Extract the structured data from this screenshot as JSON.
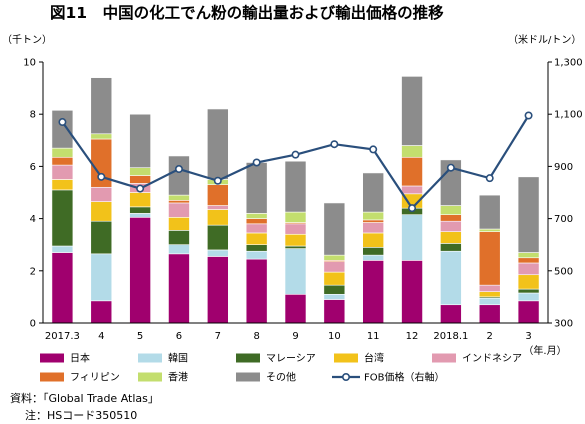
{
  "figure": {
    "title": "図11　中国の化工でん粉の輸出量および輸出価格の推移",
    "source": "資料：「Global Trade Atlas」",
    "note": "注：HSコード350510"
  },
  "chart_data": {
    "type": "bar",
    "stacked": true,
    "categories": [
      "2017.3",
      "4",
      "5",
      "6",
      "7",
      "8",
      "9",
      "10",
      "11",
      "12",
      "2018.1",
      "2",
      "3"
    ],
    "x_unit_label": "（年.月）",
    "y_left": {
      "unit_label": "（千トン）",
      "range": [
        0,
        10
      ],
      "ticks": [
        0,
        2,
        4,
        6,
        8,
        10
      ]
    },
    "y_right": {
      "unit_label": "（米ドル/トン）",
      "range": [
        300,
        1300
      ],
      "ticks": [
        "300",
        "500",
        "700",
        "900",
        "1,100",
        "1,300"
      ]
    },
    "grid": false,
    "legend_position": "bottom",
    "series": [
      {
        "name": "日本",
        "color": "#a0006e",
        "values": [
          2.7,
          0.85,
          4.05,
          2.65,
          2.55,
          2.45,
          1.1,
          0.9,
          2.4,
          2.4,
          0.7,
          0.7,
          0.85
        ]
      },
      {
        "name": "韓国",
        "color": "#b3dbe8",
        "values": [
          0.25,
          1.8,
          0.15,
          0.35,
          0.25,
          0.3,
          1.75,
          0.2,
          0.2,
          1.75,
          2.05,
          0.25,
          0.3
        ]
      },
      {
        "name": "マレーシア",
        "color": "#3f6b25",
        "values": [
          2.15,
          1.25,
          0.25,
          0.55,
          0.95,
          0.25,
          0.1,
          0.35,
          0.3,
          0.25,
          0.3,
          0.05,
          0.15
        ]
      },
      {
        "name": "台湾",
        "color": "#f2c21a",
        "values": [
          0.4,
          0.75,
          0.55,
          0.5,
          0.6,
          0.45,
          0.45,
          0.5,
          0.55,
          0.55,
          0.45,
          0.2,
          0.55
        ]
      },
      {
        "name": "インドネシア",
        "color": "#e29ab0",
        "values": [
          0.55,
          0.55,
          0.35,
          0.55,
          0.15,
          0.35,
          0.4,
          0.4,
          0.4,
          0.3,
          0.4,
          0.25,
          0.45
        ]
      },
      {
        "name": "フィリピン",
        "color": "#e0702a",
        "values": [
          0.3,
          1.85,
          0.3,
          0.1,
          0.8,
          0.2,
          0.05,
          0.05,
          0.1,
          1.1,
          0.25,
          2.05,
          0.2
        ]
      },
      {
        "name": "香港",
        "color": "#c3de6e",
        "values": [
          0.35,
          0.2,
          0.3,
          0.2,
          0.2,
          0.2,
          0.4,
          0.2,
          0.3,
          0.45,
          0.35,
          0.1,
          0.2
        ]
      },
      {
        "name": "その他",
        "color": "#8c8c8c",
        "values": [
          1.45,
          2.15,
          2.05,
          1.5,
          2.7,
          1.95,
          1.95,
          2.0,
          1.5,
          2.65,
          1.75,
          1.3,
          2.9
        ]
      }
    ],
    "line_series": {
      "name": "FOB価格（右軸）",
      "color": "#2a4f7c",
      "axis": "right",
      "values": [
        1070,
        860,
        815,
        890,
        845,
        915,
        945,
        985,
        965,
        740,
        895,
        855,
        1095
      ]
    }
  }
}
